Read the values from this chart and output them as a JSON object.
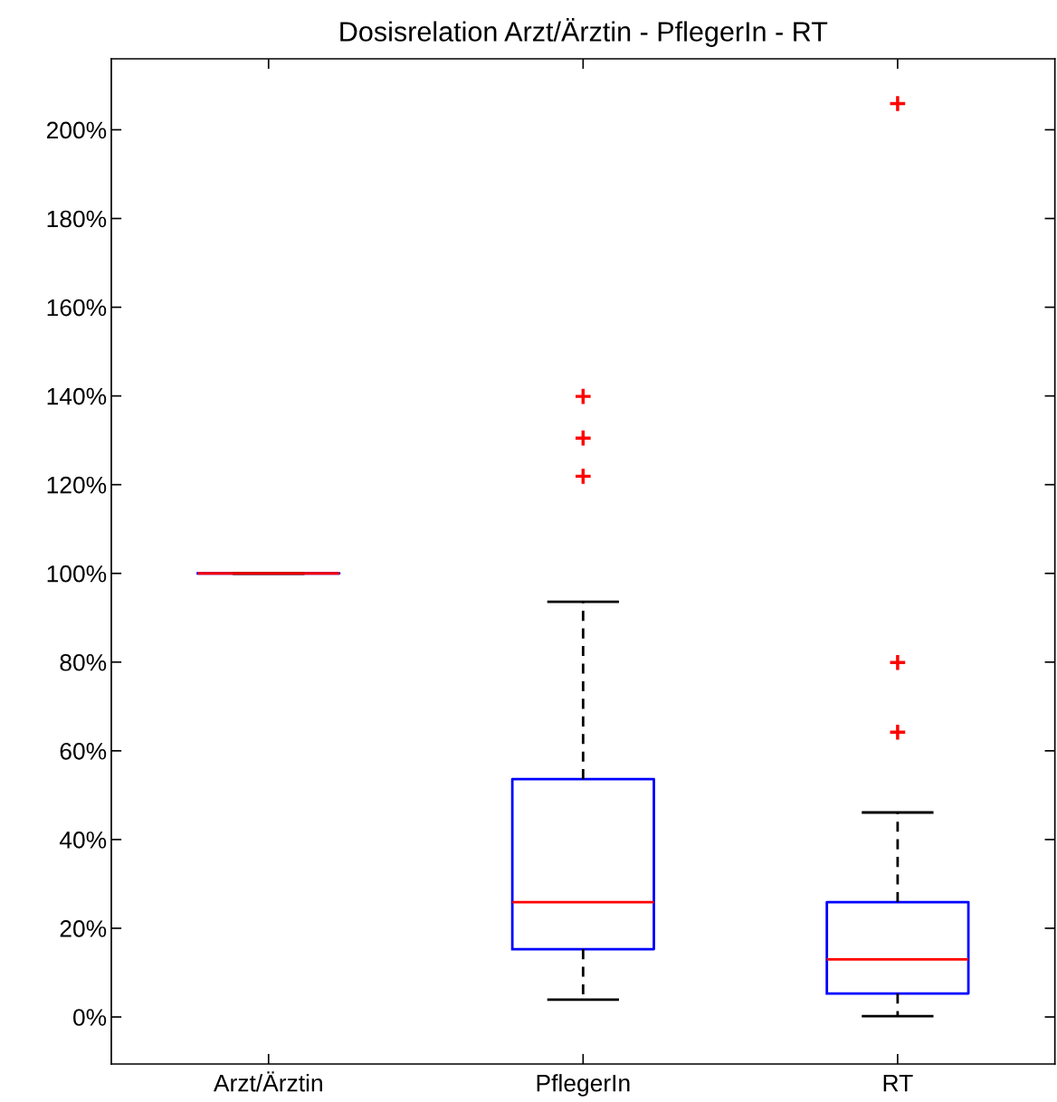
{
  "chart_data": {
    "type": "box",
    "title": "Dosisrelation Arzt/Ärztin - PflegerIn - RT",
    "categories": [
      "Arzt/Ärztin",
      "PflegerIn",
      "RT"
    ],
    "boxes": [
      {
        "low": 100,
        "q1": 100,
        "median": 100,
        "q3": 100,
        "high": 100
      },
      {
        "low": 3.9,
        "q1": 15.3,
        "median": 25.9,
        "q3": 53.6,
        "high": 93.6,
        "outliers": [
          121.9,
          130.5,
          139.9
        ]
      },
      {
        "low": 0.2,
        "q1": 5.3,
        "median": 13.0,
        "q3": 25.9,
        "high": 46.1,
        "outliers": [
          64.2,
          79.9,
          205.9
        ]
      }
    ],
    "ylim": [
      -10.6,
      216
    ],
    "yticks": [
      {
        "value": 0,
        "label": "0%"
      },
      {
        "value": 20,
        "label": "20%"
      },
      {
        "value": 40,
        "label": "40%"
      },
      {
        "value": 60,
        "label": "60%"
      },
      {
        "value": 80,
        "label": "80%"
      },
      {
        "value": 100,
        "label": "100%"
      },
      {
        "value": 120,
        "label": "120%"
      },
      {
        "value": 140,
        "label": "140%"
      },
      {
        "value": 160,
        "label": "160%"
      },
      {
        "value": 180,
        "label": "180%"
      },
      {
        "value": 200,
        "label": "200%"
      }
    ],
    "grid": false
  }
}
